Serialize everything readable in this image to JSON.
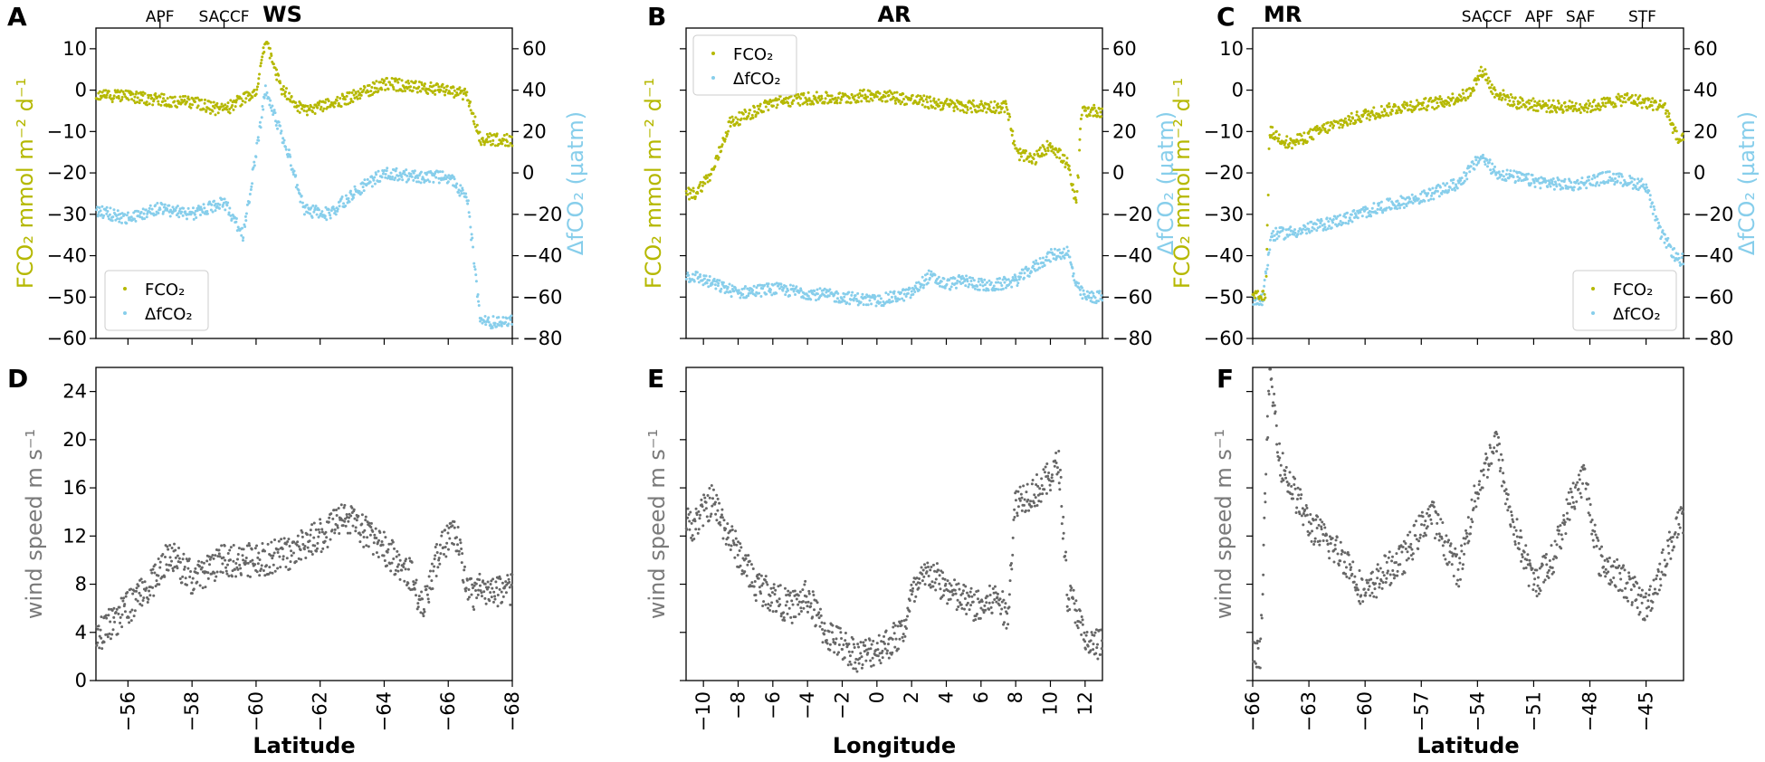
{
  "colors": {
    "fco2": "#b5b800",
    "dfco2": "#87ceeb",
    "wind": "#666666",
    "axis": "#000000"
  },
  "labels": {
    "fco2_axis": "FCO₂ mmol m⁻² d⁻¹",
    "dfco2_axis": "ΔfCO₂ (µatm)",
    "wind_axis": "wind speed m s⁻¹",
    "legend_fco2": "FCO₂",
    "legend_dfco2": "ΔfCO₂"
  },
  "panels": [
    {
      "letter": "A",
      "site": "WS",
      "kind": "flux",
      "xlabel": "Latitude",
      "xlim": [
        -55,
        -68
      ],
      "ylim_left": [
        -60,
        15
      ],
      "ylim_right": [
        -80,
        70
      ],
      "yticks_left": [
        "10",
        "0",
        "−10",
        "−20",
        "−30",
        "−40",
        "−50",
        "−60"
      ],
      "yticks_right": [
        "60",
        "40",
        "20",
        "0",
        "−20",
        "−40",
        "−60",
        "−80"
      ],
      "legend_pos": "bottom-left",
      "fronts": [
        {
          "name": "APF",
          "x": -57
        },
        {
          "name": "SACCF",
          "x": -59
        }
      ],
      "fco2_series": [
        [
          -55,
          -1
        ],
        [
          -56.5,
          -2
        ],
        [
          -58,
          -3
        ],
        [
          -59,
          -5
        ],
        [
          -60,
          0
        ],
        [
          -60.3,
          12
        ],
        [
          -60.8,
          0
        ],
        [
          -61.5,
          -5
        ],
        [
          -62.5,
          -3
        ],
        [
          -63.5,
          0
        ],
        [
          -64,
          1.5
        ],
        [
          -65,
          1
        ],
        [
          -66,
          0
        ],
        [
          -66.6,
          -1
        ],
        [
          -67,
          -12
        ]
      ],
      "dfco2_series": [
        [
          -55,
          -18
        ],
        [
          -56,
          -22
        ],
        [
          -57,
          -17
        ],
        [
          -58,
          -20
        ],
        [
          -59,
          -14
        ],
        [
          -59.6,
          -30
        ],
        [
          -60.3,
          40
        ],
        [
          -61,
          10
        ],
        [
          -61.5,
          -18
        ],
        [
          -62.3,
          -20
        ],
        [
          -63,
          -10
        ],
        [
          -64,
          0
        ],
        [
          -65,
          -2
        ],
        [
          -66,
          -2
        ],
        [
          -66.6,
          -12
        ],
        [
          -67,
          -72
        ]
      ],
      "xticks": [
        "−56",
        "−58",
        "−60",
        "−62",
        "−64",
        "−66",
        "−68"
      ]
    },
    {
      "letter": "B",
      "site": "AR",
      "kind": "flux",
      "xlabel": "Longitude",
      "xlim": [
        -11,
        13
      ],
      "ylim_left": [
        -60,
        15
      ],
      "ylim_right": [
        -80,
        70
      ],
      "yticks_left": [],
      "yticks_right": [
        "60",
        "40",
        "20",
        "0",
        "−20",
        "−40",
        "−60",
        "−80"
      ],
      "legend_pos": "top-left",
      "fronts": [],
      "fco2_series": [
        [
          -10.5,
          -25
        ],
        [
          -9.5,
          -20
        ],
        [
          -8.5,
          -8
        ],
        [
          -7,
          -5
        ],
        [
          -6,
          -3
        ],
        [
          -4,
          -2
        ],
        [
          -2,
          -2
        ],
        [
          0,
          -1
        ],
        [
          1.5,
          -2
        ],
        [
          3,
          -3
        ],
        [
          5,
          -4
        ],
        [
          6.5,
          -4
        ],
        [
          7.5,
          -4
        ],
        [
          8,
          -15
        ],
        [
          9,
          -17
        ],
        [
          10,
          -13
        ],
        [
          11,
          -18
        ],
        [
          11.5,
          -28
        ],
        [
          11.8,
          -5
        ]
      ],
      "dfco2_series": [
        [
          -10.5,
          -50
        ],
        [
          -9,
          -55
        ],
        [
          -8,
          -58
        ],
        [
          -6,
          -56
        ],
        [
          -4,
          -58
        ],
        [
          -2,
          -60
        ],
        [
          0,
          -62
        ],
        [
          2,
          -58
        ],
        [
          3,
          -50
        ],
        [
          4,
          -54
        ],
        [
          5,
          -52
        ],
        [
          6.5,
          -55
        ],
        [
          8,
          -52
        ],
        [
          9,
          -46
        ],
        [
          10,
          -40
        ],
        [
          11,
          -38
        ],
        [
          11.5,
          -55
        ],
        [
          12,
          -60
        ]
      ],
      "xticks": [
        "−10",
        "−8",
        "−6",
        "−4",
        "−2",
        "0",
        "2",
        "4",
        "6",
        "8",
        "10",
        "12"
      ]
    },
    {
      "letter": "C",
      "site": "MR",
      "kind": "flux",
      "xlabel": "Latitude",
      "xlim": [
        -66,
        -43
      ],
      "ylim_left": [
        -60,
        15
      ],
      "ylim_right": [
        -80,
        70
      ],
      "yticks_left": [
        "10",
        "0",
        "−10",
        "−20",
        "−30",
        "−40",
        "−50",
        "−60"
      ],
      "yticks_right": [
        "60",
        "40",
        "20",
        "0",
        "−20",
        "−40",
        "−60",
        "−80"
      ],
      "legend_pos": "bottom-right",
      "fronts": [
        {
          "name": "SACCF",
          "x": -53.5
        },
        {
          "name": "APF",
          "x": -50.7
        },
        {
          "name": "SAF",
          "x": -48.5
        },
        {
          "name": "STF",
          "x": -45.2
        }
      ],
      "fco2_series": [
        [
          -65.3,
          -50
        ],
        [
          -65.1,
          -10
        ],
        [
          -64,
          -13
        ],
        [
          -62,
          -9
        ],
        [
          -60,
          -6
        ],
        [
          -58,
          -4
        ],
        [
          -56,
          -3
        ],
        [
          -54.5,
          -1
        ],
        [
          -53.7,
          5
        ],
        [
          -53.2,
          0
        ],
        [
          -52,
          -3
        ],
        [
          -50,
          -4
        ],
        [
          -48,
          -4
        ],
        [
          -46,
          -2
        ],
        [
          -45,
          -3
        ],
        [
          -44,
          -4
        ],
        [
          -43.3,
          -12
        ]
      ],
      "dfco2_series": [
        [
          -65.5,
          -62
        ],
        [
          -65,
          -30
        ],
        [
          -63.5,
          -28
        ],
        [
          -61,
          -22
        ],
        [
          -59,
          -16
        ],
        [
          -57,
          -12
        ],
        [
          -55,
          -5
        ],
        [
          -53.8,
          8
        ],
        [
          -53,
          0
        ],
        [
          -51,
          -4
        ],
        [
          -49,
          -6
        ],
        [
          -47,
          -2
        ],
        [
          -45,
          -6
        ],
        [
          -44.3,
          -28
        ],
        [
          -43.3,
          -42
        ]
      ],
      "xticks": [
        "−66",
        "−63",
        "−60",
        "−57",
        "−54",
        "−51",
        "−48",
        "−45"
      ]
    },
    {
      "letter": "D",
      "site": "",
      "kind": "wind",
      "xlabel": "Latitude",
      "xlim": [
        -55,
        -68
      ],
      "ylim": [
        0,
        26
      ],
      "yticks": [
        "24",
        "20",
        "16",
        "12",
        "8",
        "4",
        "0"
      ],
      "wind_series": [
        [
          -55.2,
          4
        ],
        [
          -56,
          6
        ],
        [
          -57,
          9
        ],
        [
          -57.3,
          10.5
        ],
        [
          -58,
          8.5
        ],
        [
          -59,
          10
        ],
        [
          -60,
          10
        ],
        [
          -61,
          10.5
        ],
        [
          -62,
          12
        ],
        [
          -62.8,
          13.5
        ],
        [
          -64,
          11
        ],
        [
          -64.8,
          9
        ],
        [
          -65.2,
          6
        ],
        [
          -65.8,
          11.5
        ],
        [
          -66.3,
          12
        ],
        [
          -66.6,
          7
        ],
        [
          -67,
          7.5
        ]
      ],
      "xticks": [
        "−56",
        "−58",
        "−60",
        "−62",
        "−64",
        "−66",
        "−68"
      ]
    },
    {
      "letter": "E",
      "site": "",
      "kind": "wind",
      "xlabel": "Longitude",
      "xlim": [
        -11,
        13
      ],
      "ylim": [
        0,
        26
      ],
      "yticks": [],
      "wind_series": [
        [
          -10.5,
          13
        ],
        [
          -9.5,
          15
        ],
        [
          -8.5,
          12
        ],
        [
          -7,
          8
        ],
        [
          -5,
          6
        ],
        [
          -4,
          7
        ],
        [
          -3,
          4
        ],
        [
          -1,
          2
        ],
        [
          0.5,
          3
        ],
        [
          1.5,
          4
        ],
        [
          2,
          7
        ],
        [
          3,
          9
        ],
        [
          4.5,
          7
        ],
        [
          6,
          6
        ],
        [
          7,
          7
        ],
        [
          7.5,
          5
        ],
        [
          8,
          15
        ],
        [
          9.5,
          16
        ],
        [
          10.5,
          18
        ],
        [
          11,
          7
        ],
        [
          11.5,
          6
        ],
        [
          12,
          3
        ]
      ],
      "xticks": [
        "−10",
        "−8",
        "−6",
        "−4",
        "−2",
        "0",
        "2",
        "4",
        "6",
        "8",
        "10",
        "12"
      ]
    },
    {
      "letter": "F",
      "site": "",
      "kind": "wind",
      "xlabel": "Latitude",
      "xlim": [
        -66,
        -43
      ],
      "ylim": [
        0,
        26
      ],
      "yticks": [],
      "wind_series": [
        [
          -65.6,
          2
        ],
        [
          -65.1,
          26
        ],
        [
          -64.5,
          18
        ],
        [
          -63,
          13
        ],
        [
          -61,
          10
        ],
        [
          -60,
          7
        ],
        [
          -59,
          9
        ],
        [
          -58,
          10
        ],
        [
          -56.5,
          14
        ],
        [
          -55,
          9
        ],
        [
          -54,
          16
        ],
        [
          -53,
          20
        ],
        [
          -52.3,
          14
        ],
        [
          -51,
          8
        ],
        [
          -50,
          10
        ],
        [
          -49,
          15
        ],
        [
          -48.3,
          17
        ],
        [
          -47.5,
          10
        ],
        [
          -46,
          8
        ],
        [
          -45,
          6
        ],
        [
          -44,
          10
        ],
        [
          -43.3,
          13
        ]
      ],
      "xticks": [
        "−66",
        "−63",
        "−60",
        "−57",
        "−54",
        "−51",
        "−48",
        "−45"
      ]
    }
  ]
}
